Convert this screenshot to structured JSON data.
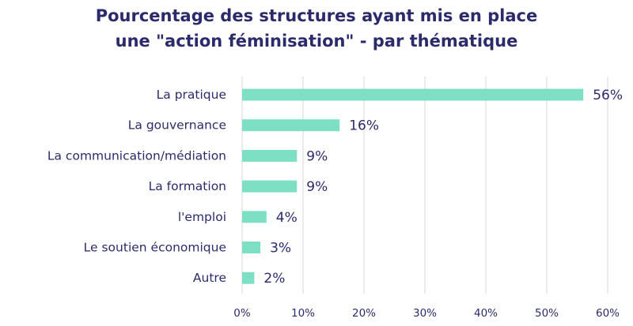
{
  "chart_data": {
    "type": "bar",
    "orientation": "horizontal",
    "title_lines": [
      "Pourcentage des structures ayant mis en place",
      "une \"action féminisation\" - par thématique"
    ],
    "categories": [
      "La pratique",
      "La gouvernance",
      "La communication/médiation",
      "La formation",
      "l'emploi",
      "Le soutien économique",
      "Autre"
    ],
    "values": [
      56,
      16,
      9,
      9,
      4,
      3,
      2
    ],
    "data_labels": [
      "56%",
      "16%",
      "9%",
      "9%",
      "4%",
      "3%",
      "2%"
    ],
    "x_ticks": [
      0,
      10,
      20,
      30,
      40,
      50,
      60
    ],
    "x_tick_labels": [
      "0%",
      "10%",
      "20%",
      "30%",
      "40%",
      "50%",
      "60%"
    ],
    "xlim": [
      0,
      60
    ],
    "grid": true,
    "colors": {
      "bar": "#7ddfc3",
      "text": "#2b2a6b",
      "grid": "#d9d9d9"
    }
  }
}
